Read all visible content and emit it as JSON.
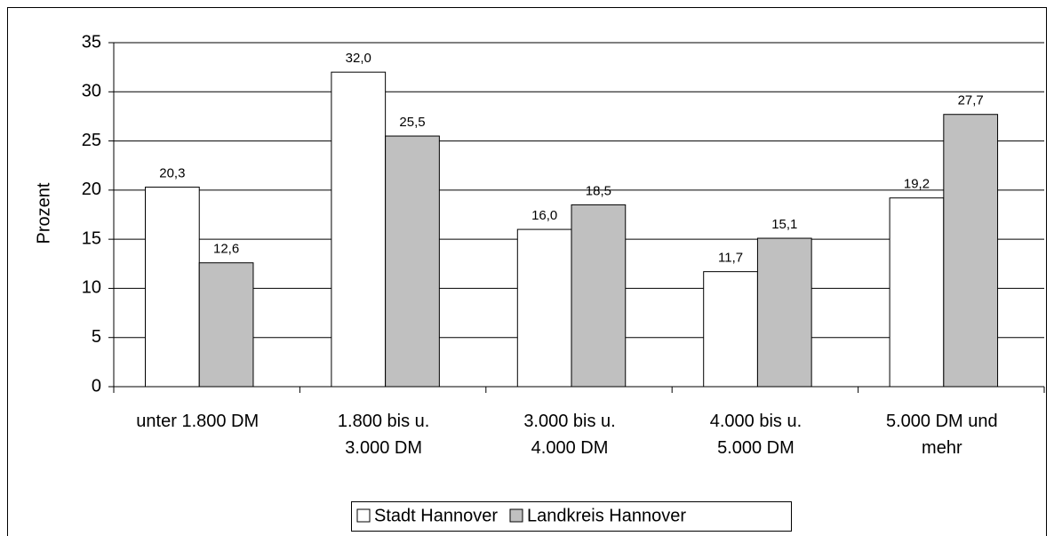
{
  "chart_data": {
    "type": "bar",
    "y_label": "Prozent",
    "categories": [
      [
        "unter 1.800 DM"
      ],
      [
        "1.800 bis u.",
        "3.000 DM"
      ],
      [
        "3.000 bis u.",
        "4.000 DM"
      ],
      [
        "4.000 bis u.",
        "5.000 DM"
      ],
      [
        "5.000 DM und",
        "mehr"
      ]
    ],
    "series": [
      {
        "name": "Stadt Hannover",
        "color": "#ffffff",
        "values": [
          20.3,
          32.0,
          16.0,
          11.7,
          19.2
        ],
        "value_labels": [
          "20,3",
          "32,0",
          "16,0",
          "11,7",
          "19,2"
        ]
      },
      {
        "name": "Landkreis Hannover",
        "color": "#c0c0c0",
        "values": [
          12.6,
          25.5,
          18.5,
          15.1,
          27.7
        ],
        "value_labels": [
          "12,6",
          "25,5",
          "18,5",
          "15,1",
          "27,7"
        ]
      }
    ],
    "ylim": [
      0,
      35
    ],
    "yticks": [
      0,
      5,
      10,
      15,
      20,
      25,
      30,
      35
    ],
    "grid": true,
    "legend": "bottom"
  }
}
